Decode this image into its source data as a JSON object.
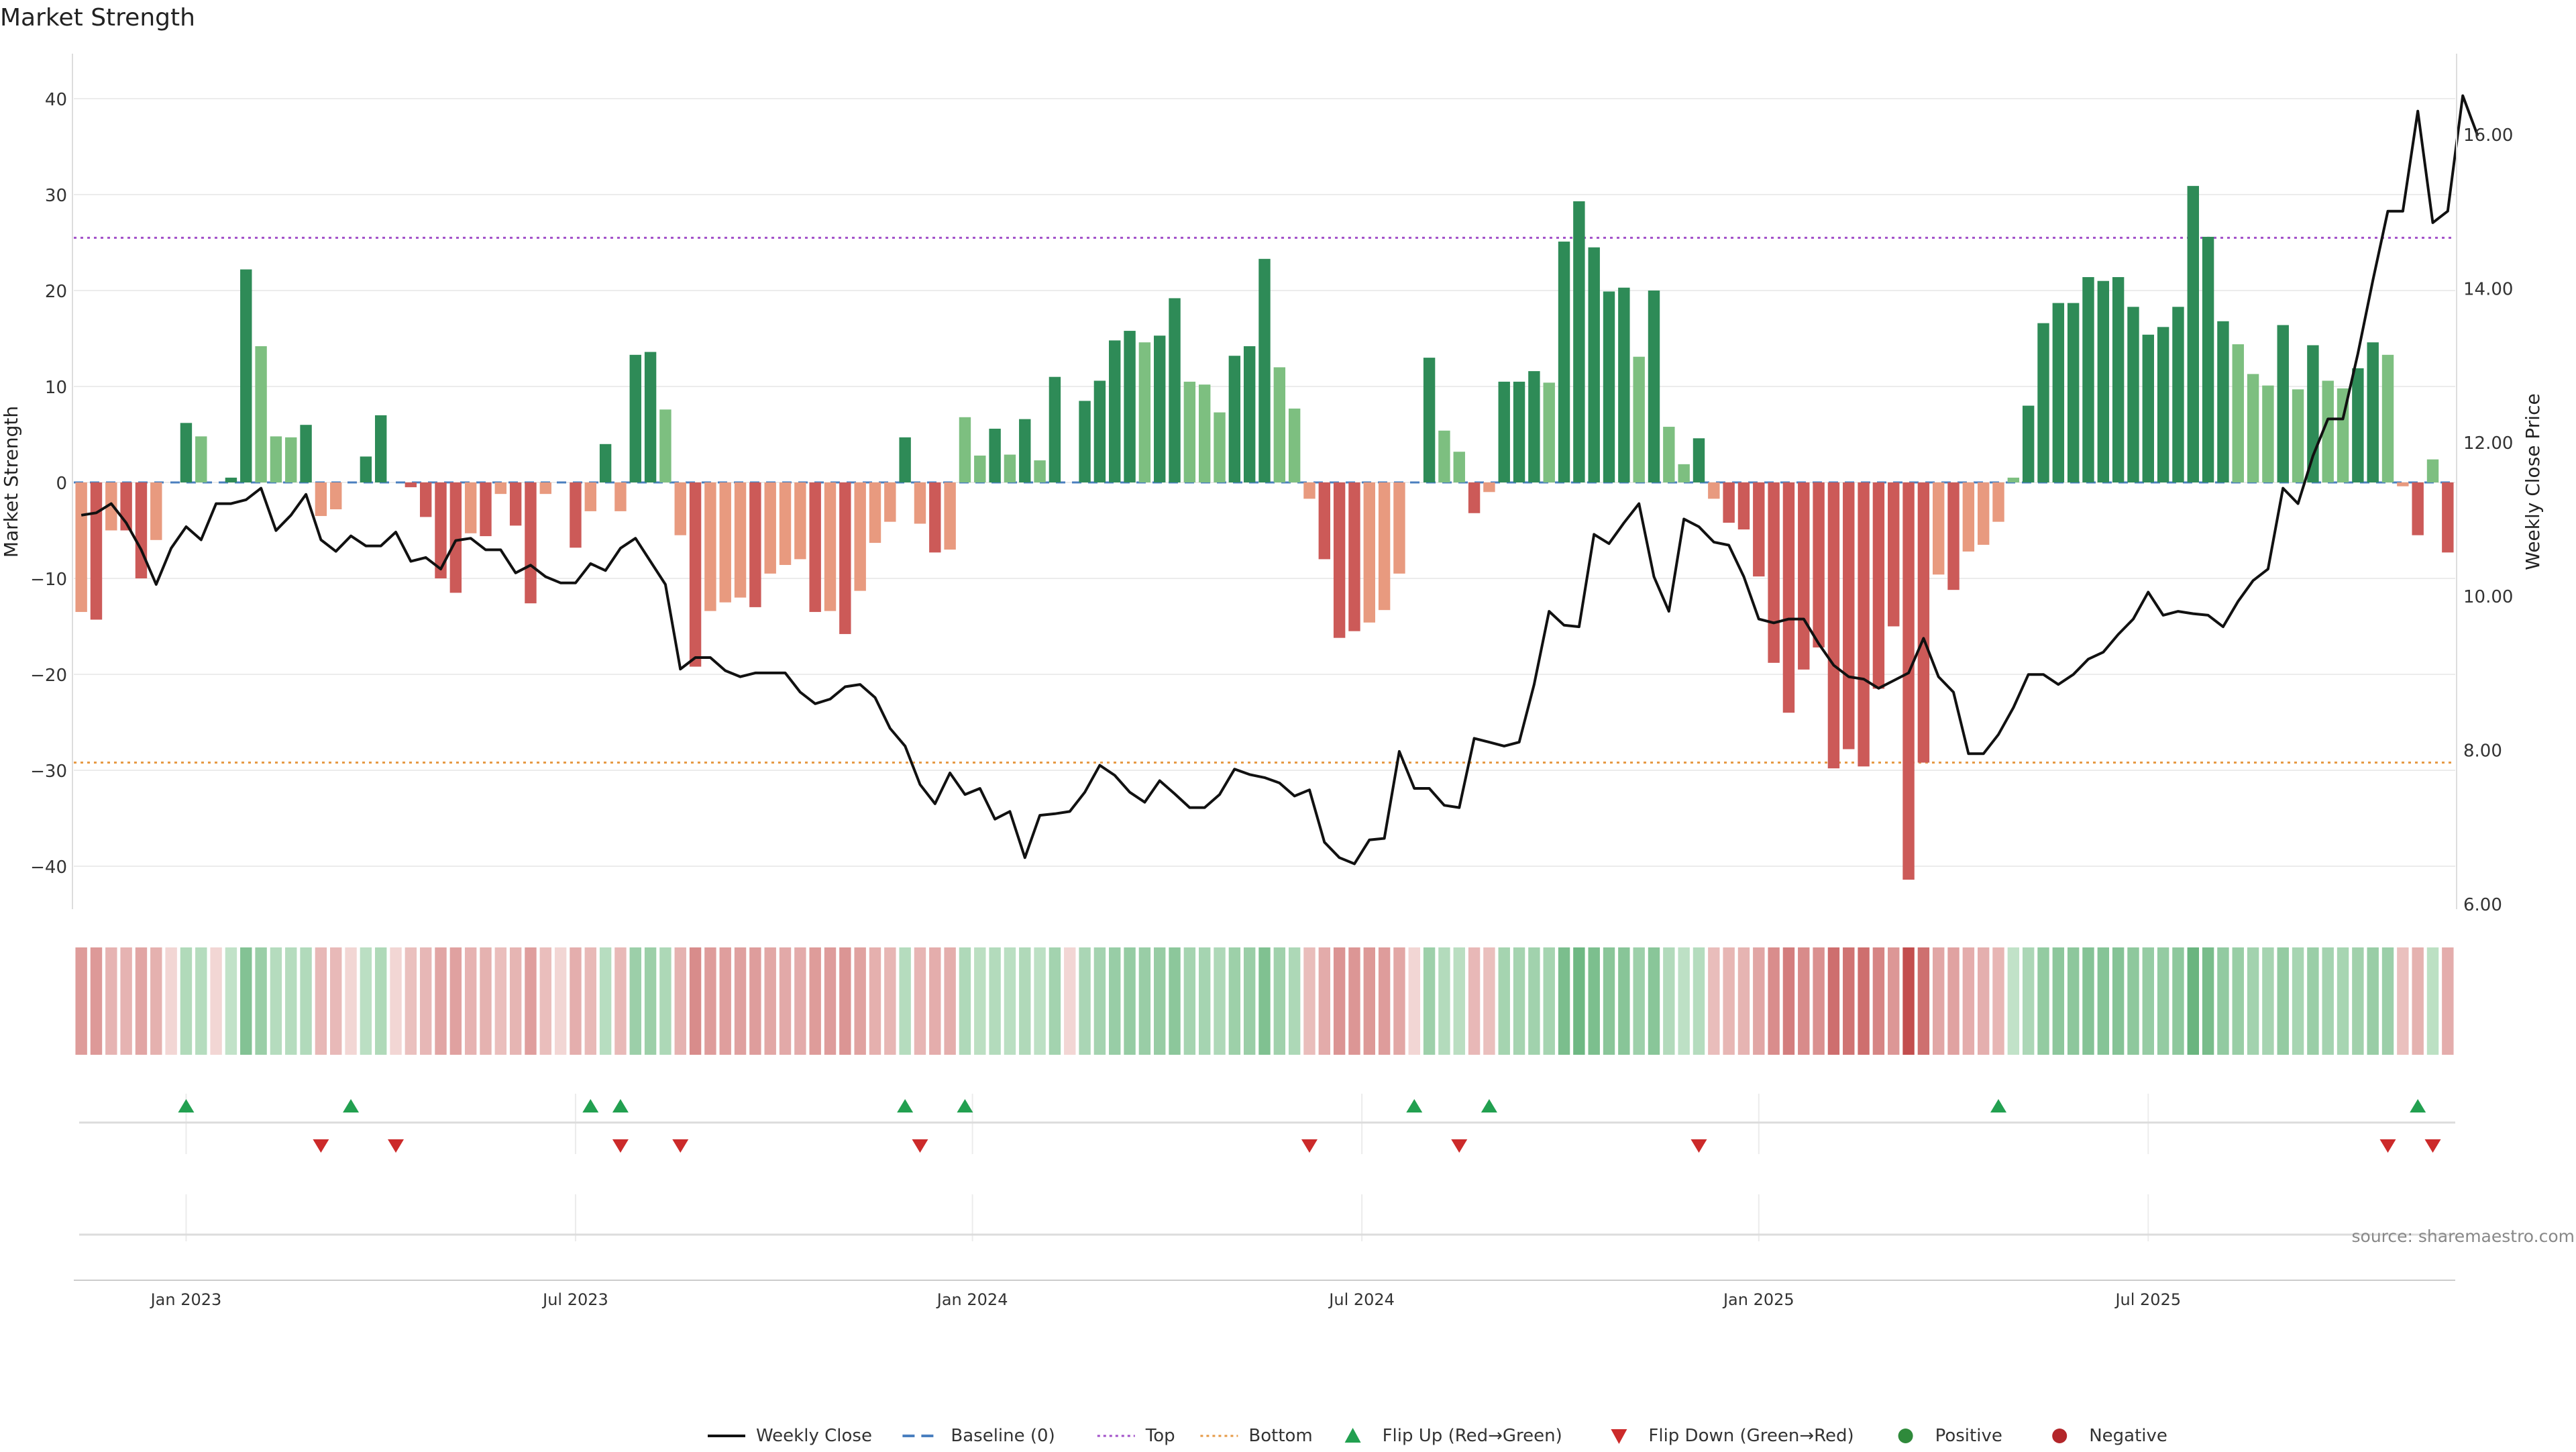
{
  "chart_data": {
    "type": "bar",
    "title": "Market Strength",
    "ylabel": "Market Strength",
    "y2label": "Weekly Close Price",
    "ylim": [
      -44,
      44
    ],
    "y2lim": [
      5.9,
      16.8
    ],
    "y_ticks": [
      -40,
      -30,
      -20,
      -10,
      0,
      10,
      20,
      30,
      40
    ],
    "y2_ticks": [
      6,
      8,
      10,
      12,
      14,
      16
    ],
    "y2_tick_labels": [
      "6.00",
      "8.00",
      "10.00",
      "12.00",
      "14.00",
      "16.00"
    ],
    "x_ticks": [
      {
        "label": "Jan 2023",
        "index": 7
      },
      {
        "label": "Jul 2023",
        "index": 33
      },
      {
        "label": "Jan 2024",
        "index": 59.5
      },
      {
        "label": "Jul 2024",
        "index": 85.5
      },
      {
        "label": "Jan 2025",
        "index": 112
      },
      {
        "label": "Jul 2025",
        "index": 138
      }
    ],
    "top_line": 25.5,
    "bottom_line": -29.2,
    "strength": [
      -13.5,
      -14.3,
      -5,
      -5,
      -10,
      -6,
      0,
      6.2,
      4.8,
      0,
      0.5,
      22.2,
      14.2,
      4.8,
      4.7,
      6,
      -3.5,
      -2.8,
      0,
      2.7,
      7,
      0,
      -0.5,
      -3.6,
      -10,
      -11.5,
      -5.3,
      -5.6,
      -1.2,
      -4.5,
      -12.6,
      -1.2,
      0,
      -6.8,
      -3,
      4,
      -3,
      13.3,
      13.6,
      7.6,
      -5.5,
      -19.2,
      -13.4,
      -12.5,
      -12,
      -13,
      -9.5,
      -8.6,
      -8,
      -13.5,
      -13.4,
      -15.8,
      -11.3,
      -6.3,
      -4.1,
      4.7,
      -4.3,
      -7.3,
      -7,
      6.8,
      2.8,
      5.6,
      2.9,
      6.6,
      2.3,
      11,
      0,
      8.5,
      10.6,
      14.8,
      15.8,
      14.6,
      15.3,
      19.2,
      10.5,
      10.2,
      7.3,
      13.2,
      14.2,
      23.3,
      12,
      7.7,
      -1.7,
      -8,
      -16.2,
      -15.5,
      -14.6,
      -13.3,
      -9.5,
      0,
      13,
      5.4,
      3.2,
      -3.2,
      -1,
      10.5,
      10.5,
      11.6,
      10.4,
      25.1,
      29.3,
      24.5,
      19.9,
      20.3,
      13.1,
      20,
      5.8,
      1.9,
      4.6,
      -1.7,
      -4.2,
      -4.9,
      -9.8,
      -18.8,
      -24,
      -19.5,
      -17.2,
      -29.8,
      -27.8,
      -29.6,
      -21.5,
      -15,
      -41.4,
      -29.2,
      -9.6,
      -11.2,
      -7.2,
      -6.5,
      -4.1,
      0.5,
      8,
      16.6,
      18.7,
      18.7,
      21.4,
      21,
      21.4,
      18.3,
      15.4,
      16.2,
      18.3,
      30.9,
      25.6,
      16.8,
      14.4,
      11.3,
      10.1,
      16.4,
      9.7,
      14.3,
      10.6,
      9.8,
      11.9,
      14.6,
      13.3,
      -0.4,
      -5.5,
      2.4,
      -7.3
    ],
    "weekly_close": [
      11.05,
      11.08,
      11.2,
      10.95,
      10.6,
      10.15,
      10.62,
      10.9,
      10.73,
      11.2,
      11.2,
      11.25,
      11.4,
      10.85,
      11.05,
      11.32,
      10.73,
      10.58,
      10.78,
      10.65,
      10.65,
      10.83,
      10.45,
      10.5,
      10.35,
      10.72,
      10.75,
      10.6,
      10.6,
      10.3,
      10.4,
      10.25,
      10.17,
      10.17,
      10.42,
      10.33,
      10.62,
      10.75,
      10.45,
      10.15,
      9.05,
      9.2,
      9.2,
      9.03,
      8.95,
      9,
      9,
      9,
      8.75,
      8.6,
      8.66,
      8.82,
      8.85,
      8.68,
      8.28,
      8.05,
      7.55,
      7.3,
      7.7,
      7.42,
      7.5,
      7.1,
      7.2,
      6.6,
      7.15,
      7.17,
      7.2,
      7.45,
      7.8,
      7.67,
      7.45,
      7.32,
      7.6,
      7.43,
      7.25,
      7.25,
      7.42,
      7.75,
      7.68,
      7.64,
      7.57,
      7.4,
      7.48,
      6.8,
      6.6,
      6.52,
      6.83,
      6.85,
      7.98,
      7.5,
      7.5,
      7.28,
      7.25,
      8.15,
      8.1,
      8.05,
      8.1,
      8.85,
      9.8,
      9.62,
      9.6,
      10.8,
      10.68,
      10.95,
      11.2,
      10.25,
      9.8,
      11,
      10.9,
      10.7,
      10.66,
      10.25,
      9.7,
      9.65,
      9.7,
      9.7,
      9.38,
      9.1,
      8.95,
      8.92,
      8.8,
      8.9,
      9,
      9.45,
      8.95,
      8.75,
      7.95,
      7.95,
      8.2,
      8.55,
      8.98,
      8.98,
      8.85,
      8.98,
      9.18,
      9.27,
      9.5,
      9.7,
      10.05,
      9.75,
      9.8,
      9.77,
      9.75,
      9.6,
      9.93,
      10.2,
      10.35,
      11.4,
      11.2,
      11.82,
      12.3,
      12.3,
      13.15,
      14.1,
      15,
      15,
      16.3,
      14.85,
      15,
      16.5,
      15.98
    ],
    "strip_note": "heat strip: one cell per week, green shades for positive strength, red shades for negative",
    "flip_up_weeks": [
      7,
      18,
      34,
      36,
      55,
      59,
      89,
      94,
      128,
      156
    ],
    "flip_down_weeks": [
      16,
      21,
      36,
      40,
      56,
      82,
      92,
      108,
      154,
      157
    ],
    "legend": [
      {
        "label": "Weekly Close",
        "symbol": "line",
        "color": "#111111"
      },
      {
        "label": "Baseline (0)",
        "symbol": "dash",
        "color": "#4a7fbf"
      },
      {
        "label": "Top",
        "symbol": "dot",
        "color": "#a251c9"
      },
      {
        "label": "Bottom",
        "symbol": "dot",
        "color": "#e69a45"
      },
      {
        "label": "Flip Up (Red→Green)",
        "symbol": "tri-up",
        "color": "#22a050"
      },
      {
        "label": "Flip Down (Green→Red)",
        "symbol": "tri-down",
        "color": "#cc2a2a"
      },
      {
        "label": "Positive",
        "symbol": "circle",
        "color": "#2f8a3b"
      },
      {
        "label": "Negative",
        "symbol": "circle",
        "color": "#b3262a"
      }
    ],
    "legend_placement": "bottom-center",
    "grid": true,
    "colors": {
      "pos_strong": "#2e8b57",
      "pos_light": "#7dbf80",
      "neg_strong": "#cc5a58",
      "neg_light": "#e89a7f",
      "close_line": "#111111",
      "top": "#a251c9",
      "bottom": "#e69a45",
      "baseline": "#4a7fbf"
    }
  },
  "source_text": "source: sharemaestro.com"
}
